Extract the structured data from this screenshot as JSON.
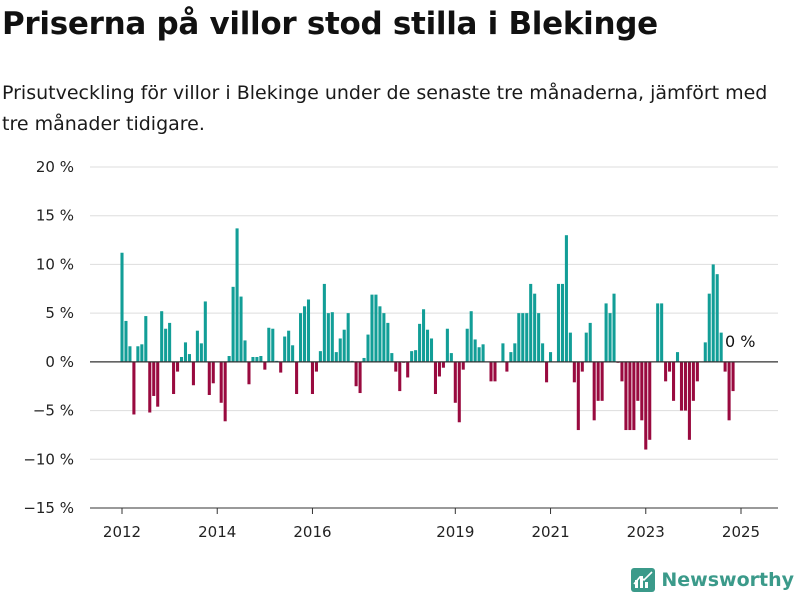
{
  "title": "Priserna på villor stod stilla i Blekinge",
  "subtitle": "Prisutveckling för villor i Blekinge under de senaste tre månaderna, jämfört med tre månader tidigare.",
  "brand": {
    "name": "Newsworthy",
    "icon": "newsworthy-logo-icon"
  },
  "colors": {
    "positive": "#129e97",
    "negative": "#990a3f",
    "grid": "#dddddd",
    "axis": "#333333"
  },
  "chart_data": {
    "type": "bar",
    "title": "Priserna på villor stod stilla i Blekinge",
    "ylabel": "",
    "xlabel": "",
    "ylim": [
      -15,
      20
    ],
    "yticks": [
      20,
      15,
      10,
      5,
      0,
      -5,
      -10,
      -15
    ],
    "ytick_labels": [
      "20 %",
      "15 %",
      "10 %",
      "5 %",
      "0 %",
      "−5 %",
      "−10 %",
      "−15 %"
    ],
    "xticks": [
      "2012",
      "2014",
      "2016",
      "2019",
      "2021",
      "2023",
      "2025"
    ],
    "grid": true,
    "annotation": {
      "text": "0 %",
      "value": 0
    },
    "dates": [
      "2012-01",
      "2012-02",
      "2012-03",
      "2012-04",
      "2012-05",
      "2012-06",
      "2012-07",
      "2012-08",
      "2012-09",
      "2012-10",
      "2012-11",
      "2012-12",
      "2013-01",
      "2013-02",
      "2013-03",
      "2013-04",
      "2013-05",
      "2013-06",
      "2013-07",
      "2013-08",
      "2013-09",
      "2013-10",
      "2013-11",
      "2013-12",
      "2014-01",
      "2014-02",
      "2014-03",
      "2014-04",
      "2014-05",
      "2014-06",
      "2014-07",
      "2014-08",
      "2014-09",
      "2014-10",
      "2014-11",
      "2014-12",
      "2015-01",
      "2015-02",
      "2015-03",
      "2015-04",
      "2015-05",
      "2015-06",
      "2015-07",
      "2015-08",
      "2015-09",
      "2015-10",
      "2015-11",
      "2015-12",
      "2016-01",
      "2016-02",
      "2016-03",
      "2016-04",
      "2016-05",
      "2016-06",
      "2016-07",
      "2016-08",
      "2016-09",
      "2016-10",
      "2016-11",
      "2016-12",
      "2017-01",
      "2017-02",
      "2017-03",
      "2017-04",
      "2017-05",
      "2017-06",
      "2017-07",
      "2017-08",
      "2017-09",
      "2017-10",
      "2017-11",
      "2017-12",
      "2018-01",
      "2018-02",
      "2018-03",
      "2018-04",
      "2018-05",
      "2018-06",
      "2018-07",
      "2018-08",
      "2018-09",
      "2018-10",
      "2018-11",
      "2018-12",
      "2019-01",
      "2019-02",
      "2019-03",
      "2019-04",
      "2019-05",
      "2019-06",
      "2019-07",
      "2019-08",
      "2019-09",
      "2019-10",
      "2019-11",
      "2019-12",
      "2020-01",
      "2020-02",
      "2020-03",
      "2020-04",
      "2020-05",
      "2020-06",
      "2020-07",
      "2020-08",
      "2020-09",
      "2020-10",
      "2020-11",
      "2020-12",
      "2021-01",
      "2021-02",
      "2021-03",
      "2021-04",
      "2021-05",
      "2021-06",
      "2021-07",
      "2021-08",
      "2021-09",
      "2021-10",
      "2021-11",
      "2021-12",
      "2022-01",
      "2022-02",
      "2022-03",
      "2022-04",
      "2022-05",
      "2022-06",
      "2022-07",
      "2022-08",
      "2022-09",
      "2022-10",
      "2022-11",
      "2022-12",
      "2023-01",
      "2023-02",
      "2023-03",
      "2023-04",
      "2023-05",
      "2023-06",
      "2023-07",
      "2023-08",
      "2023-09",
      "2023-10",
      "2023-11",
      "2023-12",
      "2024-01",
      "2024-02",
      "2024-03",
      "2024-04",
      "2024-05",
      "2024-06",
      "2024-07",
      "2024-08",
      "2024-09",
      "2024-10",
      "2024-11",
      "2024-12"
    ],
    "values": [
      11.2,
      4.2,
      1.6,
      -5.4,
      1.6,
      1.8,
      4.7,
      -5.2,
      -3.5,
      -4.6,
      5.2,
      3.4,
      4.0,
      -3.3,
      -1.0,
      0.5,
      2.0,
      0.8,
      -2.4,
      3.2,
      1.9,
      6.2,
      -3.4,
      -2.2,
      0.0,
      -4.2,
      -6.1,
      0.6,
      7.7,
      13.7,
      6.7,
      2.2,
      -2.3,
      0.5,
      0.5,
      0.6,
      -0.8,
      3.5,
      3.4,
      0.1,
      -1.1,
      2.6,
      3.2,
      1.7,
      -3.3,
      5.0,
      5.7,
      6.4,
      -3.3,
      -1.0,
      1.1,
      8.0,
      5.0,
      5.1,
      1.0,
      2.4,
      3.3,
      5.0,
      0.1,
      -2.5,
      -3.2,
      0.4,
      2.8,
      6.9,
      6.9,
      5.7,
      5.0,
      4.0,
      0.9,
      -1.0,
      -3.0,
      -0.1,
      -1.6,
      1.1,
      1.2,
      3.9,
      5.4,
      3.3,
      2.4,
      -3.3,
      -1.5,
      -0.6,
      3.4,
      0.9,
      -4.2,
      -6.2,
      -0.8,
      3.4,
      5.2,
      2.3,
      1.5,
      1.8,
      0.0,
      -2.0,
      -2.0,
      0.0,
      1.9,
      -1.0,
      1.0,
      1.9,
      5.0,
      5.0,
      5.0,
      8.0,
      7.0,
      5.0,
      1.9,
      -2.1,
      1.0,
      0.0,
      8.0,
      8.0,
      13.0,
      3.0,
      -2.1,
      -7.0,
      -1.0,
      3.0,
      4.0,
      -6.0,
      -4.0,
      -4.0,
      6.0,
      5.0,
      7.0,
      -0.1,
      -2.0,
      -7.0,
      -7.0,
      -7.0,
      -4.0,
      -6.0,
      -9.0,
      -8.0,
      0.0,
      6.0,
      6.0,
      -2.0,
      -1.0,
      -4.0,
      1.0,
      -5.0,
      -5.0,
      -8.0,
      -4.0,
      -2.0,
      0.0,
      2.0,
      7.0,
      10.0,
      9.0,
      3.0,
      -1.0,
      -6.0,
      -3.0,
      0.0
    ]
  }
}
